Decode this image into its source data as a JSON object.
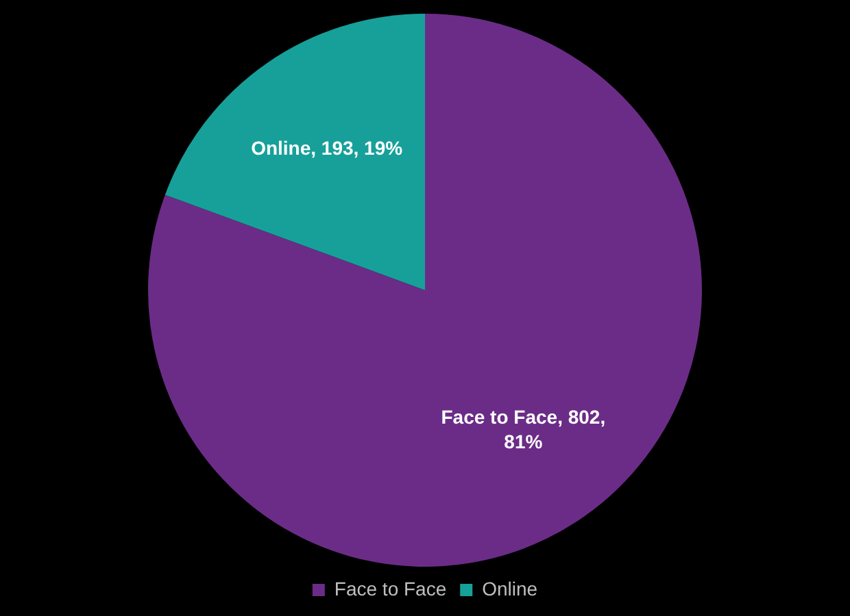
{
  "chart_data": {
    "type": "pie",
    "categories": [
      "Face to Face",
      "Online"
    ],
    "values": [
      802,
      193
    ],
    "colors": [
      "#6b2c87",
      "#17a09a"
    ],
    "value_labels": [
      "Face to Face, 802, 81%",
      "Online, 193, 19%"
    ],
    "legend": "bottom"
  }
}
